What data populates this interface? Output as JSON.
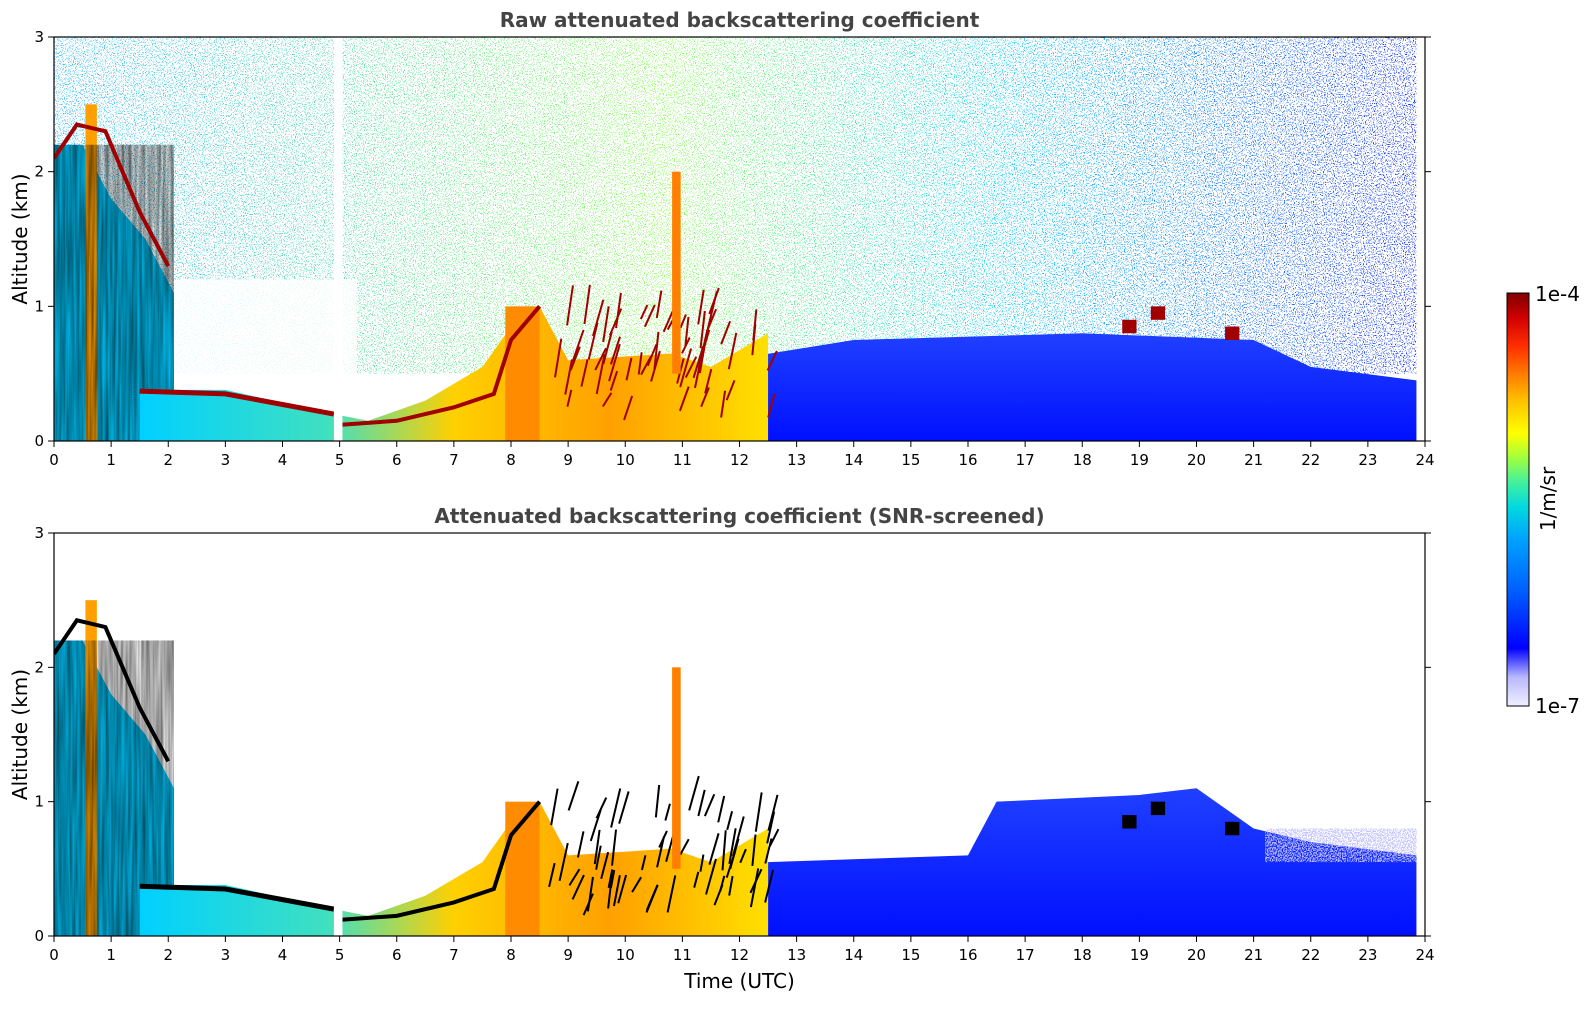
{
  "chart_data": [
    {
      "type": "heatmap",
      "title": "Raw attenuated backscattering coefficient",
      "xlabel": "",
      "ylabel": "Altitude (km)",
      "xlim": [
        0,
        24
      ],
      "ylim": [
        0,
        3
      ],
      "x_ticks": [
        "0",
        "1",
        "2",
        "3",
        "4",
        "5",
        "6",
        "7",
        "8",
        "9",
        "10",
        "11",
        "12",
        "13",
        "14",
        "15",
        "16",
        "17",
        "18",
        "19",
        "20",
        "21",
        "22",
        "23",
        "24"
      ],
      "y_ticks": [
        "0",
        "1",
        "2",
        "3"
      ],
      "data_time_range_utc": [
        0,
        23.85
      ],
      "features": [
        {
          "name": "cloud layer",
          "time_utc": [
            0,
            2.1
          ],
          "altitude_km": [
            1.6,
            2.5
          ]
        },
        {
          "name": "boundary layer top",
          "time_utc": [
            1.5,
            5.0
          ],
          "altitude_km": [
            0.2,
            0.4
          ]
        },
        {
          "name": "boundary layer growth",
          "time_utc": [
            5.5,
            8.5
          ],
          "altitude_km": [
            0.1,
            1.0
          ]
        },
        {
          "name": "plume",
          "time_utc": [
            10.8,
            11.0
          ],
          "altitude_km": [
            0.5,
            2.0
          ]
        },
        {
          "name": "convective tops",
          "time_utc": [
            9,
            12.7
          ],
          "altitude_km": [
            0.5,
            1.1
          ]
        },
        {
          "name": "cloud patches",
          "time_utc": [
            18.6,
            20.6
          ],
          "altitude_km": [
            0.7,
            1.0
          ]
        },
        {
          "name": "data gap",
          "time_utc": [
            4.9,
            5.05
          ]
        }
      ]
    },
    {
      "type": "heatmap",
      "title": "Attenuated backscattering coefficient (SNR-screened)",
      "xlabel": "Time (UTC)",
      "ylabel": "Altitude (km)",
      "xlim": [
        0,
        24
      ],
      "ylim": [
        0,
        3
      ],
      "x_ticks": [
        "0",
        "1",
        "2",
        "3",
        "4",
        "5",
        "6",
        "7",
        "8",
        "9",
        "10",
        "11",
        "12",
        "13",
        "14",
        "15",
        "16",
        "17",
        "18",
        "19",
        "20",
        "21",
        "22",
        "23",
        "24"
      ],
      "y_ticks": [
        "0",
        "1",
        "2",
        "3"
      ],
      "data_time_range_utc": [
        0,
        23.85
      ]
    }
  ],
  "colorbar": {
    "max_label": "1e-4",
    "min_label": "1e-7",
    "unit_label": "1/m/sr",
    "colormap": [
      "#f0f0ff",
      "#b8b8ff",
      "#0000ff",
      "#0060ff",
      "#00a0ff",
      "#00d8e0",
      "#40f0a0",
      "#a0ff40",
      "#ffff00",
      "#ffc000",
      "#ff8000",
      "#ff3000",
      "#d00000",
      "#800000"
    ]
  }
}
